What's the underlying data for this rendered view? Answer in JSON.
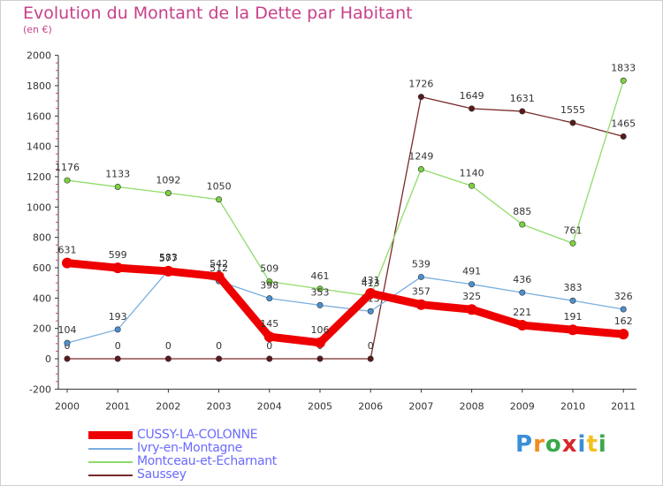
{
  "header": {
    "title": "Evolution du Montant de la Dette par Habitant",
    "subtitle": "(en €)"
  },
  "logo": {
    "text": "Proxiti",
    "colors": [
      "#3a8fd8",
      "#f28c1e",
      "#3aa84a",
      "#d8282a",
      "#3a8fd8",
      "#f2c21e",
      "#3aa84a"
    ]
  },
  "chart_data": {
    "type": "line",
    "title": "Evolution du Montant de la Dette par Habitant",
    "ylabel": "(en €)",
    "xlabel": "",
    "ylim": [
      -200,
      2000
    ],
    "yticks": [
      -200,
      0,
      200,
      400,
      600,
      800,
      1000,
      1200,
      1400,
      1600,
      1800,
      2000
    ],
    "x": [
      "2000",
      "2001",
      "2002",
      "2003",
      "2004",
      "2005",
      "2006",
      "2007",
      "2008",
      "2009",
      "2010",
      "2011"
    ],
    "legend_position": "bottom-left",
    "series": [
      {
        "name": "Saussey",
        "color": "#7a2a2a",
        "point": "#5a1a1a",
        "values": [
          0,
          0,
          0,
          0,
          0,
          0,
          0,
          1726,
          1649,
          1631,
          1555,
          1465
        ]
      },
      {
        "name": "Montceau-et-Echarnant",
        "color": "#8fdc6a",
        "point": "#7ad23e",
        "values": [
          1176,
          1133,
          1092,
          1050,
          509,
          461,
          413,
          1249,
          1140,
          885,
          761,
          1833
        ]
      },
      {
        "name": "Ivry-en-Montagne",
        "color": "#7aaee0",
        "point": "#4a90d0",
        "values": [
          104,
          193,
          583,
          512,
          398,
          353,
          313,
          539,
          491,
          436,
          383,
          326
        ]
      },
      {
        "name": "CUSSY-LA-COLONNE",
        "color": "#ee0000",
        "point": "#ee0000",
        "values": [
          631,
          599,
          577,
          542,
          145,
          106,
          431,
          357,
          325,
          221,
          191,
          162
        ]
      }
    ]
  }
}
